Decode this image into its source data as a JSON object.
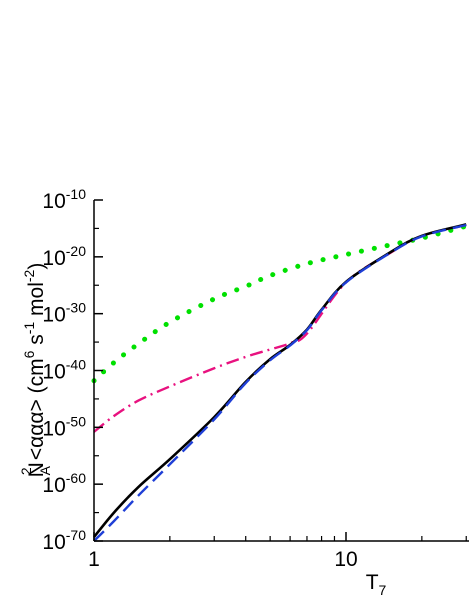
{
  "chart_data": {
    "type": "line",
    "title": "",
    "xlabel": {
      "base": "T",
      "sub": "7"
    },
    "ylabel": {
      "pre_sup_base": "N",
      "pre_sup": "2",
      "pre_sub": "A",
      "core": " <ααα> (cm",
      "unit_exp1": "6",
      "mid1": " s",
      "unit_exp2": "-1",
      "mid2": " mol",
      "unit_exp3": "-2",
      "end": ")"
    },
    "x_scale": "log",
    "y_scale": "log",
    "xlim": [
      1,
      30
    ],
    "ylim": [
      1e-70,
      1e-10
    ],
    "x_ticks": [
      {
        "value": 1,
        "label": "1"
      },
      {
        "value": 10,
        "label": "10"
      }
    ],
    "y_ticks": [
      {
        "value": -70,
        "base": "10",
        "exp": "-70"
      },
      {
        "value": -60,
        "base": "10",
        "exp": "-60"
      },
      {
        "value": -50,
        "base": "10",
        "exp": "-50"
      },
      {
        "value": -40,
        "base": "10",
        "exp": "-40"
      },
      {
        "value": -30,
        "base": "10",
        "exp": "-30"
      },
      {
        "value": -20,
        "base": "10",
        "exp": "-20"
      },
      {
        "value": -10,
        "base": "10",
        "exp": "-10"
      }
    ],
    "grid": false,
    "legend": "none",
    "series": [
      {
        "color": "#00e000",
        "style": "dotted",
        "x": [
          1.0,
          1.2,
          1.5,
          2.0,
          3.0,
          4.0,
          5.0,
          7.0,
          10.0,
          15.0,
          20.0,
          30.0
        ],
        "y_log10": [
          -41.8,
          -38.6,
          -35.3,
          -31.5,
          -27.4,
          -25.2,
          -23.3,
          -21.2,
          -19.6,
          -17.9,
          -16.7,
          -14.6
        ]
      },
      {
        "color": "#e8117f",
        "style": "dash-dot",
        "x": [
          1.0,
          1.2,
          1.5,
          2.0,
          3.0,
          4.0,
          5.0,
          6.0,
          7.0,
          10.0,
          15.0,
          20.0,
          30.0
        ],
        "y_log10": [
          -50.8,
          -48.0,
          -45.3,
          -42.8,
          -39.6,
          -37.6,
          -36.3,
          -35.2,
          -33.5,
          -24.5,
          -19.3,
          -16.3,
          -14.4
        ]
      },
      {
        "color": "#000000",
        "style": "solid",
        "x": [
          1.0,
          1.2,
          1.5,
          2.0,
          3.0,
          4.0,
          5.0,
          6.0,
          7.0,
          8.0,
          10.0,
          15.0,
          20.0,
          30.0
        ],
        "y_log10": [
          -69.3,
          -65.0,
          -60.5,
          -55.6,
          -48.2,
          -42.0,
          -38.0,
          -35.5,
          -32.8,
          -29.3,
          -24.4,
          -19.2,
          -16.3,
          -14.3
        ]
      },
      {
        "color": "#1f3fd6",
        "style": "dashed",
        "x": [
          1.0,
          1.2,
          1.5,
          2.0,
          3.0,
          4.0,
          5.0,
          6.0,
          7.0,
          8.0,
          10.0,
          15.0,
          20.0,
          30.0
        ],
        "y_log10": [
          -70.0,
          -66.5,
          -62.0,
          -56.5,
          -48.6,
          -42.2,
          -38.2,
          -35.6,
          -32.9,
          -29.4,
          -24.5,
          -19.3,
          -16.4,
          -14.4
        ]
      }
    ]
  }
}
